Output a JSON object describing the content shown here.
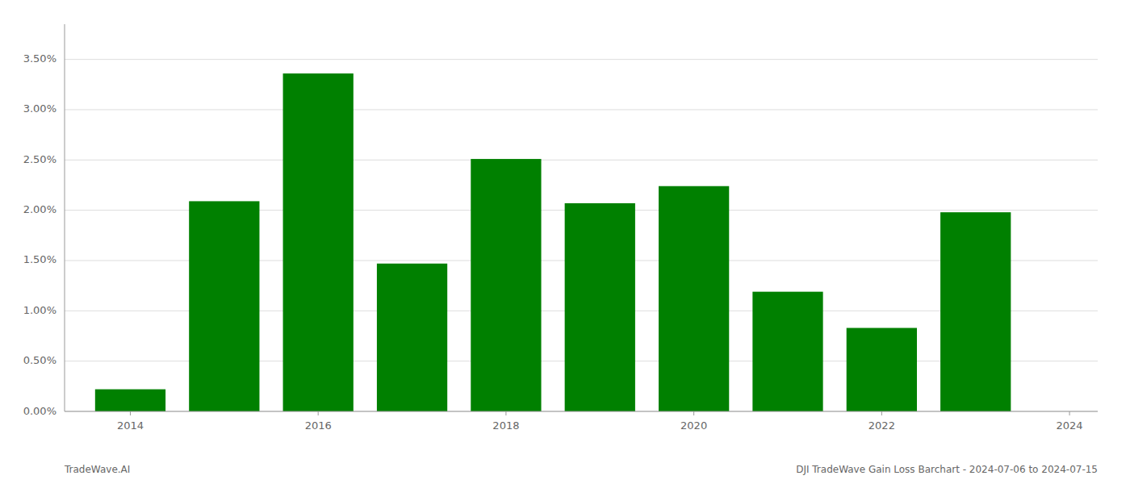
{
  "chart_data": {
    "type": "bar",
    "x": [
      2014,
      2015,
      2016,
      2017,
      2018,
      2019,
      2020,
      2021,
      2022,
      2023
    ],
    "values": [
      0.0022,
      0.0209,
      0.0336,
      0.0147,
      0.0251,
      0.0207,
      0.0224,
      0.0119,
      0.0083,
      0.0198
    ],
    "color": "#008000",
    "xlim": [
      2013.3,
      2024.3
    ],
    "xticks": [
      2014,
      2016,
      2018,
      2020,
      2022,
      2024
    ],
    "ylim": [
      0,
      0.0385
    ],
    "yticks": [
      {
        "value": 0.0,
        "label": "0.00%"
      },
      {
        "value": 0.005,
        "label": "0.50%"
      },
      {
        "value": 0.01,
        "label": "1.00%"
      },
      {
        "value": 0.015,
        "label": "1.50%"
      },
      {
        "value": 0.02,
        "label": "2.00%"
      },
      {
        "value": 0.025,
        "label": "2.50%"
      },
      {
        "value": 0.03,
        "label": "3.00%"
      },
      {
        "value": 0.035,
        "label": "3.50%"
      }
    ],
    "grid": true,
    "annotations": [
      "TradeWave.AI",
      "DJI TradeWave Gain Loss Barchart - 2024-07-06 to 2024-07-15"
    ]
  }
}
